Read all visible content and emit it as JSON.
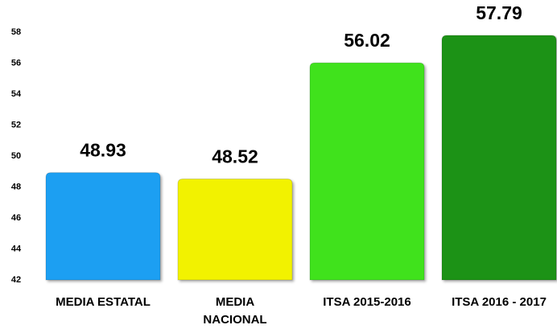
{
  "chart_data": {
    "type": "bar",
    "categories": [
      "MEDIA ESTATAL",
      "MEDIA NACIONAL",
      "ITSA 2015-2016",
      "ITSA 2016 - 2017"
    ],
    "values": [
      48.93,
      48.52,
      56.02,
      57.79
    ],
    "colors": [
      "#1a9ff2",
      "#f2f200",
      "#3fe21f",
      "#1e9215"
    ],
    "ylim": [
      42,
      58
    ],
    "yticks": [
      42,
      44,
      46,
      48,
      50,
      52,
      54,
      56,
      58
    ],
    "grid": false
  }
}
